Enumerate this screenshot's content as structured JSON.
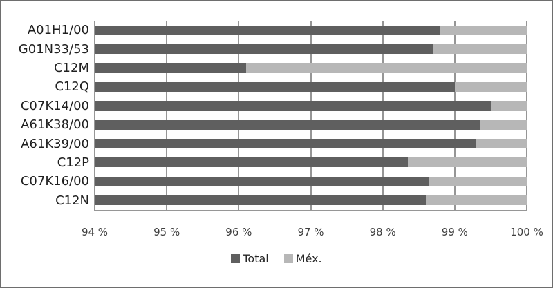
{
  "chart_data": {
    "type": "bar",
    "orientation": "horizontal",
    "stacked": true,
    "title": "",
    "xlabel": "",
    "ylabel": "",
    "categories": [
      "A01H1/00",
      "G01N33/53",
      "C12M",
      "C12Q",
      "C07K14/00",
      "A61K38/00",
      "A61K39/00",
      "C12P",
      "C07K16/00",
      "C12N"
    ],
    "series": [
      {
        "name": "Total",
        "color": "#5f5f5f",
        "values": [
          98.8,
          98.7,
          96.1,
          99.0,
          99.5,
          99.35,
          99.3,
          98.35,
          98.65,
          98.6
        ]
      },
      {
        "name": "Méx.",
        "color": "#b7b7b7",
        "values": [
          1.2,
          1.3,
          3.9,
          1.0,
          0.5,
          0.65,
          0.7,
          1.65,
          1.35,
          1.4
        ]
      }
    ],
    "xlim": [
      94,
      100
    ],
    "x_ticks": [
      {
        "value": 94,
        "label": "94 %"
      },
      {
        "value": 95,
        "label": "95 %"
      },
      {
        "value": 96,
        "label": "96 %"
      },
      {
        "value": 97,
        "label": "97 %"
      },
      {
        "value": 98,
        "label": "98 %"
      },
      {
        "value": 99,
        "label": "99 %"
      },
      {
        "value": 100,
        "label": "100 %"
      }
    ],
    "grid": "vertical",
    "legend": {
      "position": "bottom",
      "entries": [
        {
          "label": "Total",
          "color": "#5f5f5f"
        },
        {
          "label": "Méx.",
          "color": "#b7b7b7"
        }
      ]
    }
  },
  "style": {
    "frame_border": "#6e6e6e",
    "gridline_color": "#969696",
    "background": "#ffffff",
    "category_text_color": "#1f1f1f",
    "tick_text_color": "#3f3f3f",
    "legend_text_color": "#262626"
  }
}
